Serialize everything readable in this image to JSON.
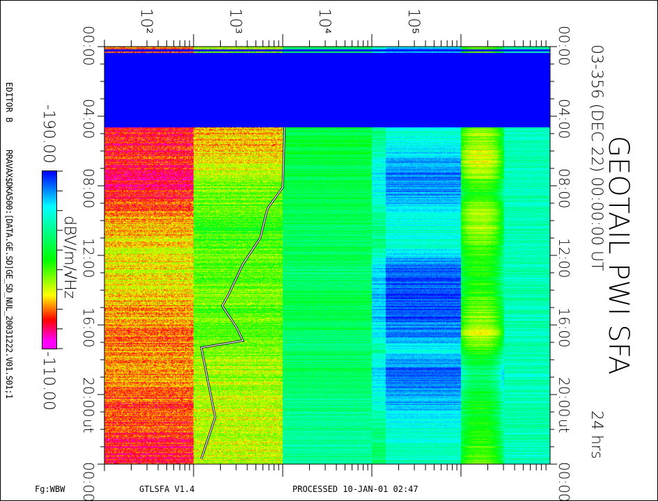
{
  "header": {
    "title": "GEOTAIL PWI SFA",
    "date_line": "03-356 (DEC 22) 00:00:00 UT",
    "span": "24 hrs"
  },
  "footer": {
    "program": "GTLSFA   V1.4",
    "processed": "PROCESSED 10-JAN-01   02:47",
    "fg": "Fg:WBW"
  },
  "side_info": {
    "editor": "EDITOR B",
    "file": "RRAVAX$DKA500:[DATA.GE.SD]GE_SD_NUL_20031222.V01.S01;1"
  },
  "colorbar": {
    "min_label": "-190.00",
    "max_label": "-110.00",
    "unit": "dBV/m/√Hz",
    "range": [
      -190,
      -110
    ],
    "colors": [
      "#0000ff",
      "#00ffff",
      "#00ff00",
      "#ffff00",
      "#ff0000",
      "#ff00ff"
    ]
  },
  "chart_data": {
    "type": "heatmap",
    "title": "GEOTAIL PWI SFA",
    "x_axis": {
      "quantity": "frequency",
      "scale": "log",
      "unit": "Hz",
      "range": [
        10,
        1000000
      ],
      "tick_labels": [
        "10²",
        "10³",
        "10⁴",
        "10⁵"
      ],
      "tick_values": [
        100,
        1000,
        10000,
        100000
      ]
    },
    "y_axis": {
      "quantity": "time",
      "unit": "UT",
      "range": [
        "00:00",
        "24:00"
      ],
      "tick_labels": [
        "00:00",
        "04:00",
        "08:00",
        "12:00",
        "16:00",
        "20:00",
        "00:00"
      ],
      "tick_hours": [
        0,
        4,
        8,
        12,
        16,
        20,
        24
      ],
      "ut_label": "ut"
    },
    "color_range_db": [
      -190,
      -110
    ],
    "data_gap_hours": [
      0.35,
      4.64
    ],
    "band_edges_hz": [
      10,
      100,
      1000,
      10000,
      100000,
      300000,
      1000000
    ],
    "hourly_level_db": [
      [
        -128,
        null,
        null,
        null,
        null,
        -122,
        -125,
        -118,
        -122,
        -128,
        -132,
        -135,
        -135,
        -135,
        -132,
        -130,
        -128,
        -130,
        -130,
        -128,
        -125,
        -125,
        -123,
        -122
      ],
      [
        -140,
        null,
        null,
        null,
        null,
        -132,
        -135,
        -140,
        -143,
        -145,
        -148,
        -145,
        -145,
        -145,
        -143,
        -145,
        -145,
        -143,
        -140,
        -140,
        -138,
        -138,
        -138,
        -138
      ],
      [
        -160,
        null,
        null,
        null,
        null,
        -155,
        -155,
        -157,
        -157,
        -158,
        -158,
        -158,
        -158,
        -160,
        -156,
        -158,
        -160,
        -160,
        -158,
        -160,
        -162,
        -163,
        -165,
        -165
      ],
      [
        -178,
        null,
        null,
        null,
        null,
        -170,
        -178,
        -182,
        -180,
        -172,
        -170,
        -170,
        -183,
        -185,
        -185,
        -185,
        -182,
        -172,
        -185,
        -182,
        -178,
        -172,
        -170,
        -168
      ],
      [
        -145,
        null,
        null,
        null,
        null,
        -140,
        -135,
        -142,
        -150,
        -140,
        -140,
        -145,
        -148,
        -150,
        -145,
        -143,
        -138,
        -148,
        -160,
        -158,
        -150,
        -152,
        -148,
        -145
      ],
      [
        -165,
        null,
        null,
        null,
        null,
        -167,
        -167,
        -167,
        -167,
        -167,
        -167,
        -167,
        -167,
        -167,
        -167,
        -167,
        -167,
        -167,
        -167,
        -167,
        -167,
        -167,
        -167,
        -167
      ]
    ],
    "trace": {
      "hours": [
        4.64,
        8.1,
        9.3,
        11.0,
        12.5,
        14.2,
        14.9,
        16.1,
        16.9,
        17.3,
        19.3,
        21.3,
        23.7
      ],
      "freq_hz": [
        1050,
        1000,
        675,
        560,
        358,
        250,
        210,
        300,
        358,
        122,
        146,
        175,
        122
      ]
    }
  }
}
